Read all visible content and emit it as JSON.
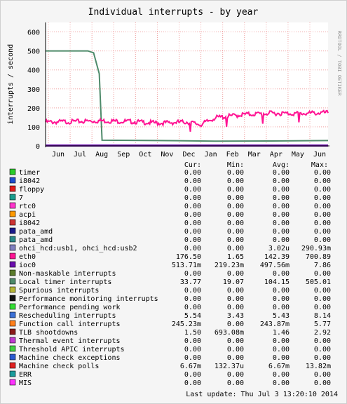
{
  "chart_data": {
    "type": "line",
    "title": "Individual interrupts - by year",
    "ylabel": "interrupts / second",
    "watermark": "RRDTOOL / TOBI OETIKER",
    "ylim": [
      0,
      650
    ],
    "yticks": [
      0,
      100,
      200,
      300,
      400,
      500,
      600
    ],
    "x_month_labels": [
      "Jun",
      "Jul",
      "Aug",
      "Sep",
      "Oct",
      "Nov",
      "Dec",
      "Jan",
      "Feb",
      "Mar",
      "Apr",
      "May",
      "Jun"
    ],
    "series_plotted": [
      {
        "name": "Local timer interrupts",
        "color": "#4e8a6a",
        "points": [
          [
            0,
            500
          ],
          [
            0.15,
            500
          ],
          [
            0.17,
            490
          ],
          [
            0.19,
            380
          ],
          [
            0.2,
            30
          ],
          [
            0.4,
            28
          ],
          [
            0.6,
            25
          ],
          [
            0.8,
            26
          ],
          [
            1.0,
            28
          ]
        ]
      },
      {
        "name": "eth0",
        "color": "#ff1493",
        "points": [
          [
            0,
            125
          ],
          [
            0.1,
            128
          ],
          [
            0.2,
            132
          ],
          [
            0.3,
            128
          ],
          [
            0.4,
            120
          ],
          [
            0.5,
            126
          ],
          [
            0.55,
            112
          ],
          [
            0.6,
            148
          ],
          [
            0.7,
            165
          ],
          [
            0.8,
            172
          ],
          [
            0.9,
            170
          ],
          [
            1.0,
            175
          ]
        ]
      },
      {
        "name": "ioc0",
        "color": "#6a0dad",
        "points": [
          [
            0,
            2
          ],
          [
            1.0,
            2
          ]
        ]
      }
    ],
    "columns": [
      "Cur:",
      "Min:",
      "Avg:",
      "Max:"
    ],
    "legend": [
      {
        "name": "timer",
        "color": "#29cc29",
        "cur": "0.00",
        "min": "0.00",
        "avg": "0.00",
        "max": "0.00"
      },
      {
        "name": "i8042",
        "color": "#1f4ecf",
        "cur": "0.00",
        "min": "0.00",
        "avg": "0.00",
        "max": "0.00"
      },
      {
        "name": "floppy",
        "color": "#e31b1b",
        "cur": "0.00",
        "min": "0.00",
        "avg": "0.00",
        "max": "0.00"
      },
      {
        "name": "7",
        "color": "#1a9c8c",
        "cur": "0.00",
        "min": "0.00",
        "avg": "0.00",
        "max": "0.00"
      },
      {
        "name": "rtc0",
        "color": "#ff33cc",
        "cur": "0.00",
        "min": "0.00",
        "avg": "0.00",
        "max": "0.00"
      },
      {
        "name": "acpi",
        "color": "#ff9900",
        "cur": "0.00",
        "min": "0.00",
        "avg": "0.00",
        "max": "0.00"
      },
      {
        "name": "i8042",
        "color": "#cc3333",
        "cur": "0.00",
        "min": "0.00",
        "avg": "0.00",
        "max": "0.00"
      },
      {
        "name": "pata_amd",
        "color": "#1a1a8c",
        "cur": "0.00",
        "min": "0.00",
        "avg": "0.00",
        "max": "0.00"
      },
      {
        "name": "pata_amd",
        "color": "#2a8a8a",
        "cur": "0.00",
        "min": "0.00",
        "avg": "0.00",
        "max": "0.00"
      },
      {
        "name": "ohci_hcd:usb1, ohci_hcd:usb2",
        "color": "#8080c0",
        "cur": "0.00",
        "min": "0.00",
        "avg": "3.02u",
        "max": "290.93m"
      },
      {
        "name": "eth0",
        "color": "#ff1493",
        "cur": "176.50",
        "min": "1.65",
        "avg": "142.39",
        "max": "700.89"
      },
      {
        "name": "ioc0",
        "color": "#6a0dad",
        "cur": "513.71m",
        "min": "219.23m",
        "avg": "497.56m",
        "max": "7.86"
      },
      {
        "name": "Non-maskable interrupts",
        "color": "#5a7a2a",
        "cur": "0.00",
        "min": "0.00",
        "avg": "0.00",
        "max": "0.00"
      },
      {
        "name": "Local timer interrupts",
        "color": "#4e8a6a",
        "cur": "33.77",
        "min": "19.07",
        "avg": "104.15",
        "max": "505.01"
      },
      {
        "name": "Spurious interrupts",
        "color": "#b5b535",
        "cur": "0.00",
        "min": "0.00",
        "avg": "0.00",
        "max": "0.00"
      },
      {
        "name": "Performance monitoring interrupts",
        "color": "#111111",
        "cur": "0.00",
        "min": "0.00",
        "avg": "0.00",
        "max": "0.00"
      },
      {
        "name": "Performance pending work",
        "color": "#33dd33",
        "cur": "0.00",
        "min": "0.00",
        "avg": "0.00",
        "max": "0.00"
      },
      {
        "name": "Rescheduling interrupts",
        "color": "#3a6fd6",
        "cur": "5.54",
        "min": "3.43",
        "avg": "5.43",
        "max": "8.14"
      },
      {
        "name": "Function call interrupts",
        "color": "#ff7f1a",
        "cur": "245.23m",
        "min": "0.00",
        "avg": "243.87m",
        "max": "5.77"
      },
      {
        "name": "TLB shootdowns",
        "color": "#8a1a1a",
        "cur": "1.50",
        "min": "693.08m",
        "avg": "1.46",
        "max": "2.92"
      },
      {
        "name": "Thermal event interrupts",
        "color": "#c03ad0",
        "cur": "0.00",
        "min": "0.00",
        "avg": "0.00",
        "max": "0.00"
      },
      {
        "name": "Threshold APIC interrupts",
        "color": "#40d040",
        "cur": "0.00",
        "min": "0.00",
        "avg": "0.00",
        "max": "0.00"
      },
      {
        "name": "Machine check exceptions",
        "color": "#2a5ad0",
        "cur": "0.00",
        "min": "0.00",
        "avg": "0.00",
        "max": "0.00"
      },
      {
        "name": "Machine check polls",
        "color": "#e02020",
        "cur": "6.67m",
        "min": "132.37u",
        "avg": "6.67m",
        "max": "13.82m"
      },
      {
        "name": "ERR",
        "color": "#1a9c9c",
        "cur": "0.00",
        "min": "0.00",
        "avg": "0.00",
        "max": "0.00"
      },
      {
        "name": "MIS",
        "color": "#ff33ff",
        "cur": "0.00",
        "min": "0.00",
        "avg": "0.00",
        "max": "0.00"
      }
    ],
    "last_update": "Last update:  Thu Jul  3 13:20:10 2014"
  }
}
